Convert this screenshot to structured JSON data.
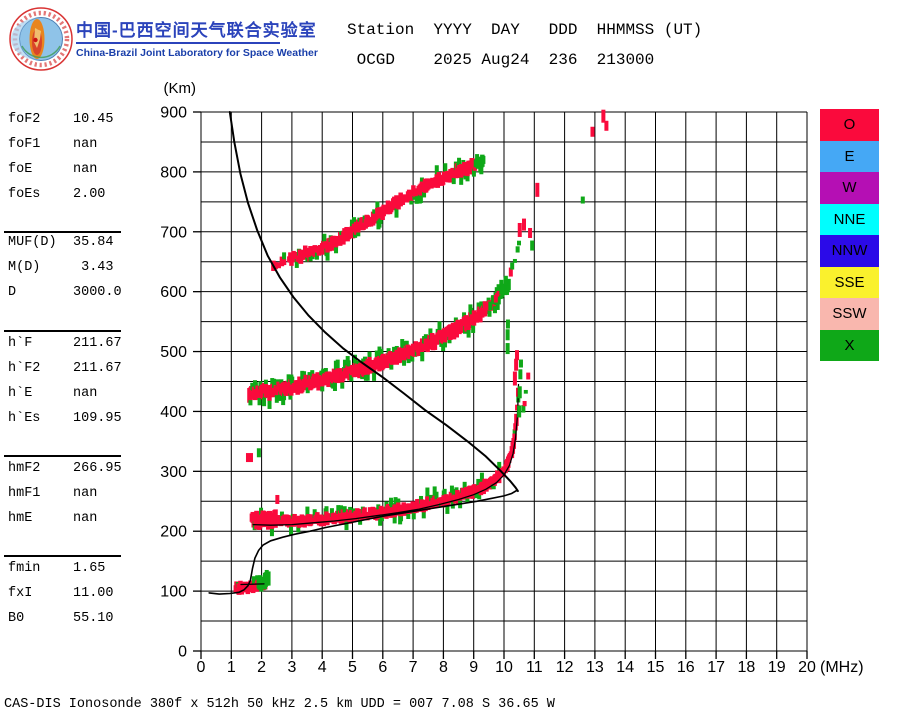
{
  "header": {
    "brand_cn": "中国-巴西空间天气联合实验室",
    "brand_en": "China-Brazil Joint Laboratory for Space Weather",
    "line1": "Station  YYYY  DAY   DDD  HHMMSS (UT)",
    "line2": " OCGD    2025 Aug24  236  213000"
  },
  "params": {
    "groups": [
      [
        {
          "label": "foF2",
          "value": "10.45"
        },
        {
          "label": "foF1",
          "value": "nan"
        },
        {
          "label": "foE",
          "value": "nan"
        },
        {
          "label": "foEs",
          "value": "2.00"
        }
      ],
      [
        {
          "label": "MUF(D)",
          "value": "35.84"
        },
        {
          "label": "M(D)",
          "value": " 3.43"
        },
        {
          "label": "D",
          "value": "3000.0"
        }
      ],
      [
        {
          "label": "h`F",
          "value": "211.67"
        },
        {
          "label": "h`F2",
          "value": "211.67"
        },
        {
          "label": "h`E",
          "value": "nan"
        },
        {
          "label": "h`Es",
          "value": "109.95"
        }
      ],
      [
        {
          "label": "hmF2",
          "value": "266.95"
        },
        {
          "label": "hmF1",
          "value": "nan"
        },
        {
          "label": "hmE",
          "value": "nan"
        }
      ],
      [
        {
          "label": "fmin",
          "value": "1.65"
        },
        {
          "label": "fxI",
          "value": "11.00"
        },
        {
          "label": "B0",
          "value": "55.10"
        }
      ]
    ]
  },
  "legend": {
    "items": [
      {
        "label": "O",
        "color": "#fa0a3c"
      },
      {
        "label": "E",
        "color": "#45a8f5"
      },
      {
        "label": "W",
        "color": "#b50fb4"
      },
      {
        "label": "NNE",
        "color": "#00fefe"
      },
      {
        "label": "NNW",
        "color": "#2b0ae8"
      },
      {
        "label": "SSE",
        "color": "#faf12d"
      },
      {
        "label": "SSW",
        "color": "#f9b7ae"
      },
      {
        "label": "X",
        "color": "#0fa818"
      }
    ]
  },
  "footer": {
    "text": "CAS-DIS Ionosonde 380f x 512h 50 kHz 2.5 km UDD = 007 7.08 S 36.65 W"
  },
  "chart_data": {
    "type": "scatter",
    "title": "Ionogram, station OCGD, 2025 Aug24, day 236, 213000 UT",
    "xlabel": "(MHz)",
    "ylabel": "(Km)",
    "xlim": [
      0,
      20
    ],
    "ylim": [
      0,
      900
    ],
    "x_tick_step": 1,
    "y_tick_step": 100,
    "grid_y_step": 50,
    "grid": true,
    "px": {
      "x0": 201,
      "dx": 30.3,
      "y0": 651,
      "dy": 0.59889
    },
    "colors": {
      "o_mode": "#fa0a3c",
      "x_mode": "#0fa818",
      "curves": "#000000"
    },
    "curves": [
      {
        "name": "muf-transmission-curve",
        "w": 2.0,
        "points": [
          [
            0.95,
            900
          ],
          [
            1.1,
            850
          ],
          [
            1.3,
            797
          ],
          [
            1.55,
            748
          ],
          [
            1.85,
            703
          ],
          [
            2.2,
            660
          ],
          [
            2.6,
            624
          ],
          [
            3.05,
            591
          ],
          [
            3.55,
            560
          ],
          [
            4.1,
            532
          ],
          [
            4.7,
            505
          ],
          [
            5.35,
            480
          ],
          [
            6.0,
            457
          ],
          [
            6.7,
            430
          ],
          [
            7.4,
            402
          ],
          [
            8.1,
            377
          ],
          [
            8.8,
            350
          ],
          [
            9.4,
            325
          ],
          [
            9.9,
            300
          ],
          [
            10.2,
            284
          ],
          [
            10.38,
            273
          ],
          [
            10.46,
            267
          ]
        ]
      },
      {
        "name": "true-height-profile",
        "w": 1.6,
        "points": [
          [
            0.27,
            97
          ],
          [
            0.6,
            95
          ],
          [
            0.95,
            96
          ],
          [
            1.25,
            98
          ],
          [
            1.42,
            102
          ],
          [
            1.55,
            109
          ],
          [
            1.63,
            118
          ],
          [
            1.7,
            138
          ],
          [
            1.78,
            155
          ],
          [
            1.9,
            168
          ],
          [
            2.05,
            177
          ],
          [
            2.3,
            184
          ],
          [
            2.7,
            190
          ],
          [
            3.1,
            195
          ],
          [
            3.6,
            200
          ],
          [
            4.1,
            206
          ],
          [
            4.6,
            211
          ],
          [
            5.1,
            216
          ],
          [
            5.6,
            221
          ],
          [
            6.1,
            226
          ],
          [
            6.6,
            230
          ],
          [
            7.1,
            234
          ],
          [
            7.6,
            238
          ],
          [
            8.1,
            242
          ],
          [
            8.6,
            246
          ],
          [
            9.1,
            250
          ],
          [
            9.6,
            255
          ],
          [
            10.0,
            259
          ],
          [
            10.25,
            263
          ],
          [
            10.42,
            268
          ]
        ]
      },
      {
        "name": "es-scaled-segment",
        "w": 1.3,
        "points": [
          [
            1.32,
            111
          ],
          [
            2.08,
            112
          ]
        ]
      },
      {
        "name": "f-scaled-trace",
        "w": 1.3,
        "points": [
          [
            1.72,
            211
          ],
          [
            2.3,
            210
          ],
          [
            3.0,
            211
          ],
          [
            3.7,
            214
          ],
          [
            4.4,
            217
          ],
          [
            5.1,
            221
          ],
          [
            5.8,
            226
          ],
          [
            6.5,
            231
          ],
          [
            7.2,
            237
          ],
          [
            7.9,
            245
          ],
          [
            8.5,
            253
          ],
          [
            9.0,
            261
          ],
          [
            9.4,
            270
          ],
          [
            9.75,
            281
          ],
          [
            10.0,
            294
          ],
          [
            10.18,
            310
          ],
          [
            10.3,
            330
          ],
          [
            10.38,
            355
          ],
          [
            10.44,
            390
          ],
          [
            10.47,
            425
          ],
          [
            10.48,
            445
          ]
        ]
      }
    ],
    "bands": [
      {
        "name": "es-layer",
        "thick": 15,
        "step": 0.022,
        "w": 4.5,
        "green_p": 0.1,
        "points": [
          [
            1.15,
            104
          ],
          [
            1.45,
            106
          ],
          [
            1.75,
            107
          ],
          [
            2.0,
            109
          ],
          [
            2.12,
            111
          ]
        ]
      },
      {
        "name": "es-layer-xmode",
        "green_only": true,
        "thick": 20,
        "step": 0.03,
        "w": 4,
        "points": [
          [
            1.9,
            112
          ],
          [
            2.05,
            116
          ],
          [
            2.24,
            121
          ]
        ]
      },
      {
        "name": "f-trace-1hop",
        "thick": 15,
        "thick_until": 2.5,
        "step": 0.03,
        "w": 4.5,
        "green_p": 0.26,
        "points": [
          [
            1.68,
            221
          ],
          [
            2.1,
            219
          ],
          [
            2.6,
            218
          ],
          [
            3.1,
            218
          ],
          [
            3.6,
            219
          ],
          [
            4.1,
            221
          ],
          [
            4.6,
            223
          ],
          [
            5.1,
            226
          ],
          [
            5.6,
            229
          ],
          [
            6.1,
            232
          ],
          [
            6.6,
            236
          ],
          [
            7.1,
            241
          ],
          [
            7.6,
            246
          ],
          [
            8.1,
            252
          ],
          [
            8.6,
            259
          ],
          [
            9.0,
            267
          ],
          [
            9.4,
            276
          ],
          [
            9.7,
            286
          ],
          [
            9.95,
            298
          ],
          [
            10.12,
            312
          ],
          [
            10.25,
            331
          ],
          [
            10.34,
            355
          ],
          [
            10.4,
            382
          ],
          [
            10.44,
            408
          ],
          [
            10.47,
            430
          ]
        ]
      },
      {
        "name": "f-trace-2hop",
        "thick": 19,
        "step": 0.03,
        "w": 4.5,
        "green_p": 0.3,
        "tail_green_from": 9.7,
        "points": [
          [
            1.6,
            429
          ],
          [
            1.9,
            431
          ],
          [
            2.3,
            434
          ],
          [
            2.7,
            437
          ],
          [
            3.1,
            441
          ],
          [
            3.5,
            446
          ],
          [
            3.9,
            451
          ],
          [
            4.3,
            456
          ],
          [
            4.7,
            462
          ],
          [
            5.1,
            468
          ],
          [
            5.5,
            474
          ],
          [
            5.9,
            481
          ],
          [
            6.3,
            488
          ],
          [
            6.7,
            496
          ],
          [
            7.1,
            504
          ],
          [
            7.5,
            513
          ],
          [
            7.9,
            523
          ],
          [
            8.3,
            534
          ],
          [
            8.7,
            545
          ],
          [
            9.0,
            555
          ],
          [
            9.3,
            566
          ],
          [
            9.6,
            579
          ],
          [
            9.85,
            593
          ],
          [
            10.05,
            606
          ],
          [
            10.15,
            614
          ]
        ]
      },
      {
        "name": "f-trace-3hop",
        "thick": 17,
        "step": 0.035,
        "w": 4.5,
        "green_p": 0.25,
        "sparse_until": 3.1,
        "gap_sparse": 0.5,
        "tail_green_from": 9.05,
        "points": [
          [
            2.25,
            640
          ],
          [
            2.55,
            646
          ],
          [
            2.85,
            652
          ],
          [
            3.2,
            658
          ],
          [
            3.55,
            664
          ],
          [
            3.9,
            671
          ],
          [
            4.25,
            679
          ],
          [
            4.6,
            689
          ],
          [
            4.95,
            699
          ],
          [
            5.3,
            710
          ],
          [
            5.65,
            721
          ],
          [
            6.0,
            732
          ],
          [
            6.35,
            744
          ],
          [
            6.7,
            755
          ],
          [
            7.05,
            765
          ],
          [
            7.4,
            775
          ],
          [
            7.75,
            784
          ],
          [
            8.1,
            792
          ],
          [
            8.45,
            800
          ],
          [
            8.8,
            807
          ],
          [
            9.1,
            813
          ],
          [
            9.32,
            819
          ]
        ]
      },
      {
        "name": "f-2hop-spread-tail",
        "thick": 11,
        "step": 0.045,
        "w": 4,
        "mix_green": 0.5,
        "gap_p": 0.4,
        "points": [
          [
            9.55,
            578
          ],
          [
            9.8,
            594
          ],
          [
            10.05,
            614
          ],
          [
            10.25,
            638
          ],
          [
            10.4,
            660
          ],
          [
            10.5,
            682
          ]
        ]
      },
      {
        "name": "f-1hop-xmode-tail",
        "thick": 10,
        "step": 0.04,
        "w": 4,
        "mix_green": 0.45,
        "gap_p": 0.3,
        "points": [
          [
            10.6,
            388
          ],
          [
            10.68,
            415
          ],
          [
            10.74,
            440
          ],
          [
            10.8,
            462
          ]
        ]
      }
    ],
    "spots": {
      "red": [
        [
          1.6,
          323,
          7,
          9
        ],
        [
          2.52,
          253,
          4,
          9
        ],
        [
          10.36,
          455,
          4,
          14
        ],
        [
          10.4,
          478,
          4,
          12
        ],
        [
          10.43,
          494,
          4,
          10
        ],
        [
          10.52,
          703,
          4,
          14
        ],
        [
          10.66,
          712,
          4,
          12
        ],
        [
          10.86,
          698,
          4,
          10
        ],
        [
          11.1,
          770,
          4,
          14
        ],
        [
          12.92,
          867,
          4,
          10
        ],
        [
          13.28,
          893,
          4,
          13
        ],
        [
          13.38,
          877,
          4,
          10
        ]
      ],
      "green": [
        [
          1.91,
          331,
          4,
          9
        ],
        [
          10.5,
          400,
          4,
          12
        ],
        [
          10.52,
          432,
          4,
          12
        ],
        [
          10.54,
          462,
          4,
          10
        ],
        [
          10.56,
          480,
          4,
          8
        ],
        [
          10.12,
          505,
          4,
          11
        ],
        [
          10.12,
          528,
          4,
          11
        ],
        [
          10.13,
          546,
          4,
          9
        ],
        [
          10.93,
          677,
          4,
          10
        ],
        [
          12.6,
          753,
          4,
          7
        ],
        [
          9.32,
          820,
          4,
          8
        ],
        [
          10.05,
          617,
          4,
          8
        ]
      ]
    }
  }
}
